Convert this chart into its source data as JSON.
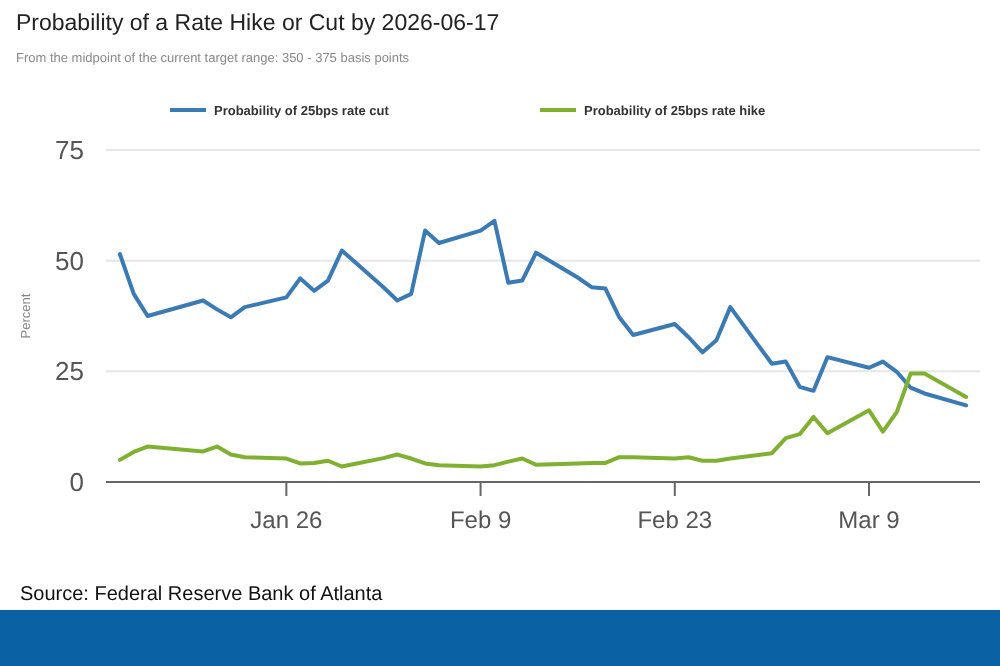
{
  "chart_data": {
    "type": "line",
    "title": "Probability of a Rate Hike or Cut by 2026-06-17",
    "subtitle": "From the midpoint of the current target range: 350 - 375 basis points",
    "ylabel": "Percent",
    "annotations": [
      "Source: Federal Reserve Bank of Atlanta"
    ],
    "x": [
      "2026-01-14",
      "2026-01-15",
      "2026-01-16",
      "2026-01-20",
      "2026-01-21",
      "2026-01-22",
      "2026-01-23",
      "2026-01-26",
      "2026-01-27",
      "2026-01-28",
      "2026-01-29",
      "2026-01-30",
      "2026-02-02",
      "2026-02-03",
      "2026-02-04",
      "2026-02-05",
      "2026-02-06",
      "2026-02-09",
      "2026-02-10",
      "2026-02-11",
      "2026-02-12",
      "2026-02-13",
      "2026-02-16",
      "2026-02-17",
      "2026-02-18",
      "2026-02-19",
      "2026-02-20",
      "2026-02-23",
      "2026-02-24",
      "2026-02-25",
      "2026-02-26",
      "2026-02-27",
      "2026-03-02",
      "2026-03-03",
      "2026-03-04",
      "2026-03-05",
      "2026-03-06",
      "2026-03-09",
      "2026-03-10",
      "2026-03-11",
      "2026-03-12",
      "2026-03-13",
      "2026-03-16"
    ],
    "series": [
      {
        "name": "Probability of 25bps rate cut",
        "color": "#3a7ab5",
        "values": [
          51.5,
          42.5,
          37.5,
          41,
          39,
          37.2,
          39.5,
          41.7,
          46,
          43.2,
          45.5,
          52.3,
          44,
          41,
          42.5,
          56.8,
          54,
          56.8,
          59,
          45,
          45.5,
          51.8,
          46.2,
          44,
          43.7,
          37.2,
          33.2,
          35.7,
          32.7,
          29.3,
          32,
          39.5,
          26.7,
          27.2,
          21.5,
          20.6,
          28.2,
          25.8,
          27.2,
          24.9,
          21.3,
          20,
          17.3
        ]
      },
      {
        "name": "Probability of 25bps rate hike",
        "color": "#7fb030",
        "values": [
          5,
          6.8,
          8,
          6.9,
          8,
          6.2,
          5.6,
          5.3,
          4.2,
          4.3,
          4.8,
          3.5,
          5.4,
          6.2,
          5.3,
          4.2,
          3.8,
          3.5,
          3.8,
          4.6,
          5.3,
          3.9,
          4.2,
          4.3,
          4.3,
          5.6,
          5.6,
          5.3,
          5.6,
          4.8,
          4.8,
          5.3,
          6.5,
          9.9,
          10.8,
          14.7,
          11,
          16.2,
          11.4,
          15.8,
          24.5,
          24.5,
          19.2
        ]
      }
    ],
    "xlim": [
      "2026-01-13",
      "2026-03-17"
    ],
    "xticks": [
      {
        "value": "2026-01-26",
        "label": "Jan 26"
      },
      {
        "value": "2026-02-09",
        "label": "Feb 9"
      },
      {
        "value": "2026-02-23",
        "label": "Feb 23"
      },
      {
        "value": "2026-03-09",
        "label": "Mar 9"
      }
    ],
    "ylim": [
      0,
      75
    ],
    "yticks": [
      0,
      25,
      50,
      75
    ],
    "grid": "y",
    "legend": "top",
    "marker": "none",
    "line_style": "solid"
  }
}
